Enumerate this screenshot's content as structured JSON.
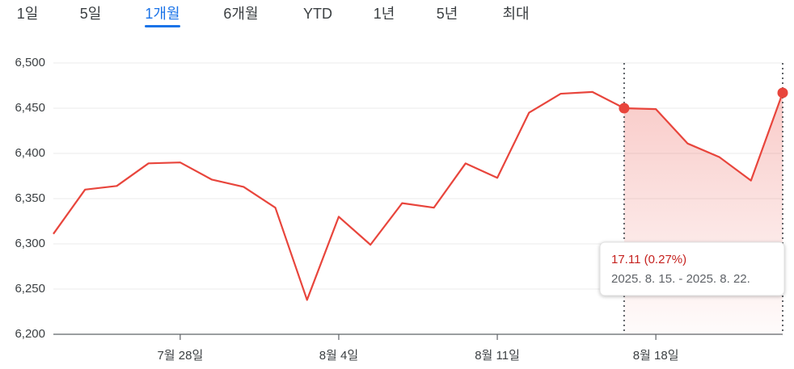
{
  "tabs": [
    "1일",
    "5일",
    "1개월",
    "6개월",
    "YTD",
    "1년",
    "5년",
    "최대"
  ],
  "selected_tab": 2,
  "chart_data": {
    "type": "line",
    "categories": [
      null,
      null,
      null,
      null,
      "7월 28일",
      null,
      null,
      null,
      null,
      "8월 4일",
      null,
      null,
      null,
      null,
      "8월 11일",
      null,
      null,
      null,
      null,
      "8월 18일",
      null,
      null,
      null,
      null
    ],
    "series": [
      {
        "color": "#e8453c",
        "values": [
          6311,
          6360,
          6364,
          6389,
          6390,
          6371,
          6363,
          6340,
          6238,
          6330,
          6299,
          6345,
          6340,
          6389,
          6373,
          6445,
          6466,
          6468,
          6450,
          6449,
          6411,
          6396,
          6370,
          6467
        ]
      }
    ],
    "ylim": [
      6200,
      6500
    ],
    "yticks": [
      {
        "value": 6200,
        "label": "6,200"
      },
      {
        "value": 6250,
        "label": "6,250"
      },
      {
        "value": 6300,
        "label": "6,300"
      },
      {
        "value": 6350,
        "label": "6,350"
      },
      {
        "value": 6400,
        "label": "6,400"
      },
      {
        "value": 6450,
        "label": "6,450"
      },
      {
        "value": 6500,
        "label": "6,500"
      }
    ],
    "grid": true,
    "highlight": [
      18,
      23
    ],
    "tooltip": {
      "change": "17.11 (0.27%)",
      "range": "2025. 8. 15. - 2025. 8. 22."
    }
  }
}
